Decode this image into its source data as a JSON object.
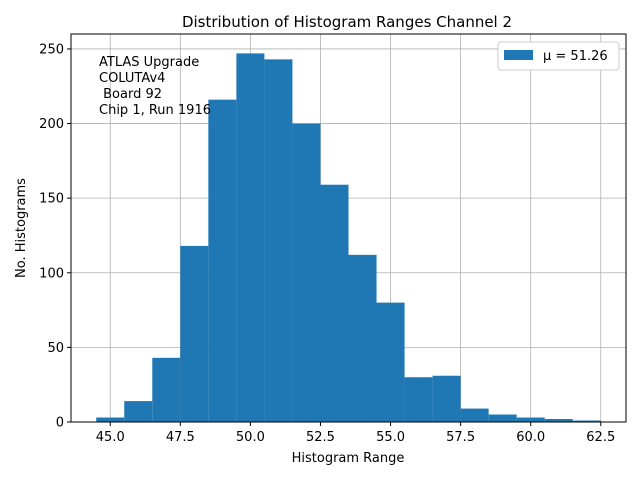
{
  "chart_data": {
    "type": "bar",
    "title": "Distribution of Histogram Ranges Channel 2",
    "xlabel": "Histogram Range",
    "ylabel": "No. Histograms",
    "xlim": [
      43.6,
      63.4
    ],
    "ylim": [
      0,
      260
    ],
    "xticks": [
      45.0,
      47.5,
      50.0,
      52.5,
      55.0,
      57.5,
      60.0,
      62.5
    ],
    "xtick_labels": [
      "45.0",
      "47.5",
      "50.0",
      "52.5",
      "55.0",
      "57.5",
      "60.0",
      "62.5"
    ],
    "yticks": [
      0,
      50,
      100,
      150,
      200,
      250
    ],
    "ytick_labels": [
      "0",
      "50",
      "100",
      "150",
      "200",
      "250"
    ],
    "grid": true,
    "legend_position": "top-right",
    "bin_edges": [
      44.5,
      45.5,
      46.5,
      47.5,
      48.5,
      49.5,
      50.5,
      51.5,
      52.5,
      53.5,
      54.5,
      55.5,
      56.5,
      57.5,
      58.5,
      59.5,
      60.5,
      61.5,
      62.5
    ],
    "series": [
      {
        "name": "μ = 51.26",
        "color": "#1f77b4",
        "values": [
          3,
          14,
          43,
          118,
          216,
          247,
          243,
          200,
          159,
          112,
          80,
          30,
          31,
          9,
          5,
          3,
          2,
          1
        ]
      }
    ],
    "annotation": [
      "ATLAS Upgrade",
      "COLUTAv4",
      " Board 92",
      "Chip 1, Run 1916"
    ]
  }
}
